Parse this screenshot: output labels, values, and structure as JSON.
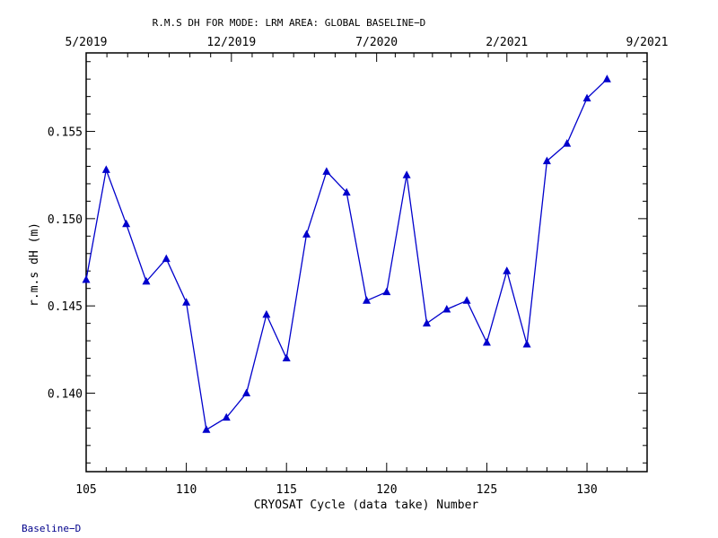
{
  "chart_data": {
    "type": "line",
    "title": "R.M.S DH FOR MODE: LRM AREA: GLOBAL BASELINE−D",
    "xlabel": "CRYOSAT Cycle (data take) Number",
    "ylabel": "r.m.s dH (m)",
    "xlim": [
      105,
      133
    ],
    "ylim": [
      0.1355,
      0.1595
    ],
    "x_ticks": [
      105,
      110,
      115,
      120,
      125,
      130
    ],
    "x_tick_labels": [
      "105",
      "110",
      "115",
      "120",
      "125",
      "130"
    ],
    "y_ticks": [
      0.14,
      0.145,
      0.15,
      0.155
    ],
    "y_tick_labels": [
      "0.140",
      "0.145",
      "0.150",
      "0.155"
    ],
    "top_axis_labels": [
      {
        "cycle": 105,
        "label": "5/2019"
      },
      {
        "cycle": 112.25,
        "label": "12/2019"
      },
      {
        "cycle": 119.5,
        "label": "7/2020"
      },
      {
        "cycle": 126.0,
        "label": "2/2021"
      },
      {
        "cycle": 133,
        "label": "9/2021"
      }
    ],
    "series": [
      {
        "color": "#0000cc",
        "marker": "triangle",
        "x": [
          105,
          106,
          107,
          108,
          109,
          110,
          111,
          112,
          113,
          114,
          115,
          116,
          117,
          118,
          119,
          120,
          121,
          122,
          123,
          124,
          125,
          126,
          127,
          128,
          129,
          130,
          131
        ],
        "y": [
          0.1465,
          0.1528,
          0.1497,
          0.1464,
          0.1477,
          0.1452,
          0.1379,
          0.1386,
          0.14,
          0.1445,
          0.142,
          0.1491,
          0.1527,
          0.1515,
          0.1453,
          0.1458,
          0.1525,
          0.144,
          0.1448,
          0.1453,
          0.1429,
          0.147,
          0.1428,
          0.1533,
          0.1543,
          0.1569,
          0.158
        ]
      }
    ]
  },
  "footnote": "Baseline−D"
}
